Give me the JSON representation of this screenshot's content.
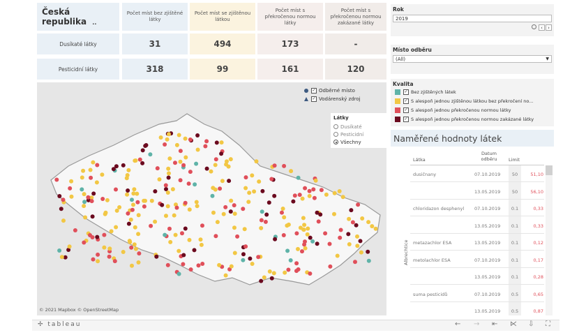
{
  "kpi": {
    "title": "Česká republika",
    "ellipsis": "..",
    "columns": [
      "Počet míst bez zjištěné látky",
      "Počet míst se zjištěnou látkou",
      "Počet míst s překročenou normou látky",
      "Počet míst s překročenou normou zakázané látky"
    ],
    "rows": [
      {
        "label": "Dusíkaté látky",
        "values": [
          "31",
          "494",
          "173",
          "-"
        ]
      },
      {
        "label": "Pesticidní látky",
        "values": [
          "318",
          "99",
          "161",
          "120"
        ]
      }
    ]
  },
  "filters": {
    "rok_label": "Rok",
    "rok_value": "2019",
    "misto_label": "Místo odběru",
    "misto_value": "(All)"
  },
  "quality_legend": {
    "label": "Kvalita",
    "items": [
      {
        "text": "Bez zjištěných látek",
        "color": "#5fb3a8"
      },
      {
        "text": "S alespoň jednou zjištěnou látkou bez překročení no...",
        "color": "#f2c744"
      },
      {
        "text": "S alespoň jednou překročenou normou látky",
        "color": "#e04f5a"
      },
      {
        "text": "S alespoň jednou překročenou normou zakázané látky",
        "color": "#6b0a1f"
      }
    ]
  },
  "map": {
    "legend_items": [
      {
        "text": "Odběrné místo",
        "shape": "circle",
        "color": "#3d5a80"
      },
      {
        "text": "Vodárenský zdroj",
        "shape": "triangle",
        "color": "#3d5a80"
      }
    ],
    "latky_label": "Látky",
    "latky_options": [
      "Dusíkaté",
      "Pesticidní",
      "Všechny"
    ],
    "latky_selected": "Všechny",
    "attribution": "© 2021 Mapbox  © OpenStreetMap"
  },
  "table": {
    "title": "Naměřené hodnoty látek",
    "headers": {
      "latka": "Látka",
      "datum": "Datum odběru",
      "limit": "Limit"
    },
    "group": "Albrechtice",
    "rows": [
      {
        "latka": "dusičnany",
        "datum": "07.10.2019",
        "limit": "50",
        "value": "51,10"
      },
      {
        "latka": "",
        "datum": "13.05.2019",
        "limit": "50",
        "value": "56,10"
      },
      {
        "latka": "chloridazon desphenyl",
        "datum": "07.10.2019",
        "limit": "0.1",
        "value": "0,33"
      },
      {
        "latka": "",
        "datum": "13.05.2019",
        "limit": "0.1",
        "value": "0,33"
      },
      {
        "latka": "metazachlor ESA",
        "datum": "13.05.2019",
        "limit": "0.1",
        "value": "0,12"
      },
      {
        "latka": "metolachlor ESA",
        "datum": "07.10.2019",
        "limit": "0.1",
        "value": "0,17"
      },
      {
        "latka": "",
        "datum": "13.05.2019",
        "limit": "0.1",
        "value": "0,28"
      },
      {
        "latka": "suma pesticidů",
        "datum": "07.10.2019",
        "limit": "0.5",
        "value": "0,65"
      },
      {
        "latka": "",
        "datum": "13.05.2019",
        "limit": "0.5",
        "value": "0,87"
      }
    ]
  },
  "toolbar": {
    "logo": "tableau"
  }
}
